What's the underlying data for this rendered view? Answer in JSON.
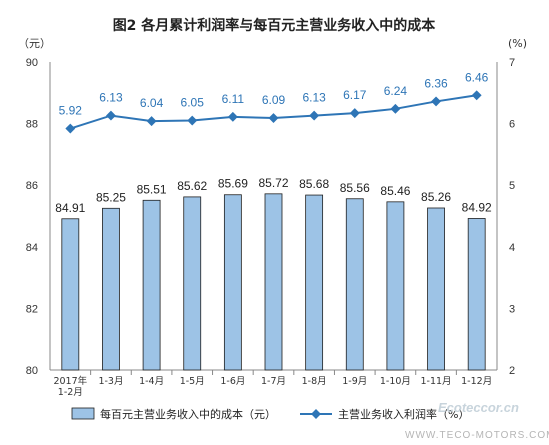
{
  "chart_data": {
    "type": "bar",
    "title": "图2  各月累计利润率与每百元主营业务收入中的成本",
    "left_axis_unit": "（元）",
    "right_axis_unit": "(%)",
    "categories": [
      [
        "2017年",
        "1-2月"
      ],
      [
        "1-3月"
      ],
      [
        "1-4月"
      ],
      [
        "1-5月"
      ],
      [
        "1-6月"
      ],
      [
        "1-7月"
      ],
      [
        "1-8月"
      ],
      [
        "1-9月"
      ],
      [
        "1-10月"
      ],
      [
        "1-11月"
      ],
      [
        "1-12月"
      ]
    ],
    "y_left": {
      "min": 80,
      "max": 90,
      "ticks": [
        80,
        82,
        84,
        86,
        88,
        90
      ]
    },
    "y_right": {
      "min": 2,
      "max": 7,
      "ticks": [
        2,
        3,
        4,
        5,
        6,
        7
      ]
    },
    "series": [
      {
        "name": "每百元主营业务收入中的成本（元）",
        "kind": "bar",
        "axis": "left",
        "color": "#9dc3e6",
        "stroke": "#1f1f1f",
        "values": [
          84.91,
          85.25,
          85.51,
          85.62,
          85.69,
          85.72,
          85.68,
          85.56,
          85.46,
          85.26,
          84.92
        ],
        "labels": [
          "84.91",
          "85.25",
          "85.51",
          "85.62",
          "85.69",
          "85.72",
          "85.68",
          "85.56",
          "85.46",
          "85.26",
          "84.92"
        ]
      },
      {
        "name": "主营业务收入利润率（%）",
        "kind": "line",
        "axis": "right",
        "color": "#2e75b6",
        "values": [
          5.92,
          6.13,
          6.04,
          6.05,
          6.11,
          6.09,
          6.13,
          6.17,
          6.24,
          6.36,
          6.46
        ],
        "labels": [
          "5.92",
          "6.13",
          "6.04",
          "6.05",
          "6.11",
          "6.09",
          "6.13",
          "6.17",
          "6.24",
          "6.36",
          "6.46"
        ]
      }
    ],
    "legend_position": "bottom",
    "grid": false
  },
  "watermark": {
    "logo_text": "Ecoteccor.cn",
    "sub_text": "WWW.TECO-MOTORS.COM"
  }
}
